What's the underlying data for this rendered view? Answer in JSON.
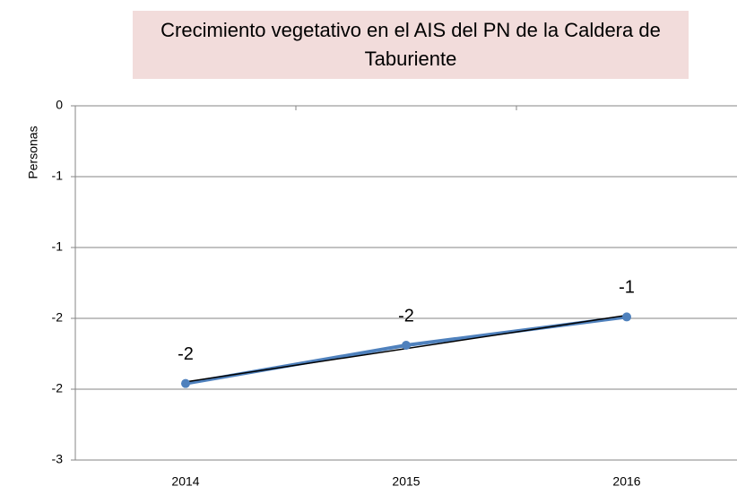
{
  "chart_data": {
    "type": "line",
    "title": "Crecimiento vegetativo en el AIS del PN de la Caldera de Taburiente",
    "y_label": "Personas",
    "categories": [
      "2014",
      "2015",
      "2016"
    ],
    "series": [
      {
        "name": "Crecimiento vegetativo",
        "color": "#4f81bd",
        "values": [
          -1.96,
          -1.69,
          -1.49
        ],
        "value_labels": [
          "-2",
          "-2",
          "-1"
        ]
      }
    ],
    "ylim": [
      -2.5,
      0
    ],
    "yticks": [
      0,
      {
        "value": -0.5,
        "label": "-1"
      },
      -1,
      {
        "value": -1.5,
        "label": "-2"
      },
      -2,
      {
        "value": -2.5,
        "label": "-3"
      }
    ],
    "grid": true,
    "trendline": true,
    "trendline_color": "#000000"
  }
}
